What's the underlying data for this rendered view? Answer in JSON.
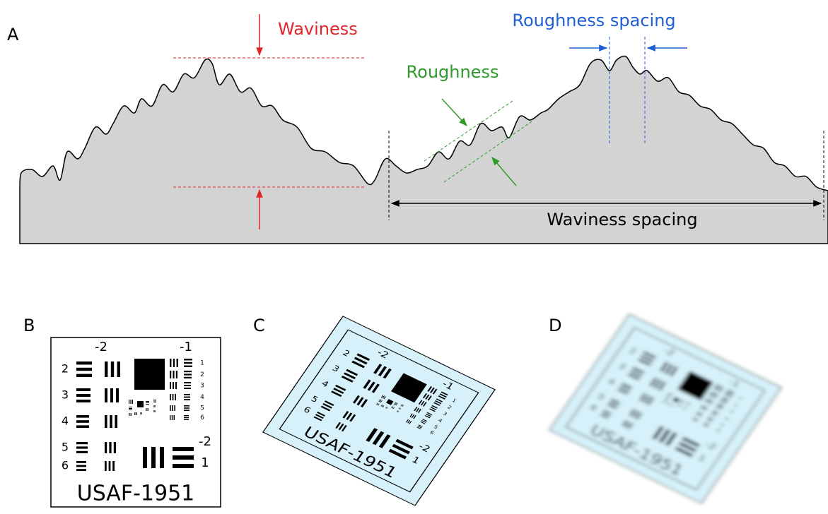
{
  "panel_a": {
    "label": "A",
    "waviness": "Waviness",
    "roughness": "Roughness",
    "roughness_spacing": "Roughness spacing",
    "waviness_spacing": "Waviness spacing"
  },
  "panels": [
    {
      "label": "B"
    },
    {
      "label": "C"
    },
    {
      "label": "D"
    }
  ],
  "target": {
    "name": "USAF-1951",
    "group_labels": [
      "-2",
      "-1",
      "-2"
    ],
    "element_labels_left": [
      "2",
      "3",
      "4",
      "5",
      "6"
    ],
    "element_labels_right": [
      "1",
      "2",
      "3",
      "4",
      "5",
      "6"
    ],
    "element_label_bottom": "1"
  }
}
